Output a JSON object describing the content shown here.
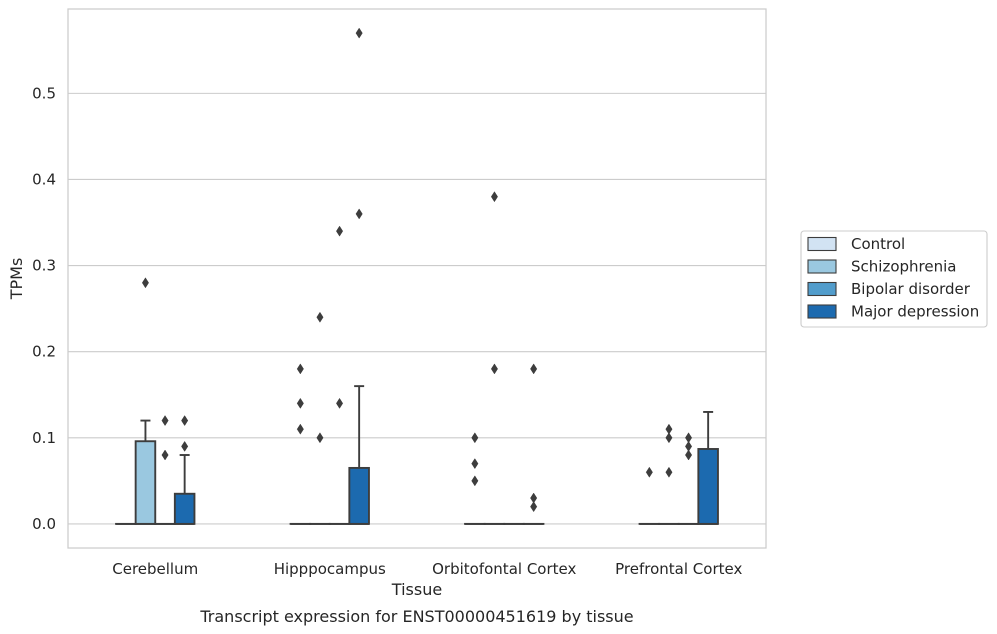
{
  "chart_data": {
    "type": "boxplot",
    "caption": "Transcript expression for ENST00000451619 by tissue",
    "xlabel": "Tissue",
    "ylabel": "TPMs",
    "ylim": [
      -0.028,
      0.598
    ],
    "yticks": [
      0.0,
      0.1,
      0.2,
      0.3,
      0.4,
      0.5
    ],
    "ytick_labels": [
      "0.0",
      "0.1",
      "0.2",
      "0.3",
      "0.4",
      "0.5"
    ],
    "grid": "horizontal",
    "legend_position": "right",
    "categories": [
      "Cerebellum",
      "Hipppocampus",
      "Orbitofontal Cortex",
      "Prefrontal Cortex"
    ],
    "series": [
      {
        "name": "Control",
        "color": "#d2e3f3",
        "boxes": [
          {
            "q1": 0,
            "median": 0,
            "q3": 0,
            "whisker_low": 0,
            "whisker_high": 0,
            "outliers": []
          },
          {
            "q1": 0,
            "median": 0,
            "q3": 0,
            "whisker_low": 0,
            "whisker_high": 0,
            "outliers": [
              0.11,
              0.14,
              0.18
            ]
          },
          {
            "q1": 0,
            "median": 0,
            "q3": 0,
            "whisker_low": 0,
            "whisker_high": 0,
            "outliers": [
              0.05,
              0.07,
              0.1
            ]
          },
          {
            "q1": 0,
            "median": 0,
            "q3": 0,
            "whisker_low": 0,
            "whisker_high": 0,
            "outliers": [
              0.06
            ]
          }
        ]
      },
      {
        "name": "Schizophrenia",
        "color": "#9ac8e0",
        "boxes": [
          {
            "q1": 0,
            "median": 0,
            "q3": 0.096,
            "whisker_low": 0,
            "whisker_high": 0.12,
            "outliers": [
              0.28
            ]
          },
          {
            "q1": 0,
            "median": 0,
            "q3": 0,
            "whisker_low": 0,
            "whisker_high": 0,
            "outliers": [
              0.1,
              0.24
            ]
          },
          {
            "q1": 0,
            "median": 0,
            "q3": 0,
            "whisker_low": 0,
            "whisker_high": 0,
            "outliers": [
              0.18,
              0.38
            ]
          },
          {
            "q1": 0,
            "median": 0,
            "q3": 0,
            "whisker_low": 0,
            "whisker_high": 0,
            "outliers": [
              0.06,
              0.1,
              0.11
            ]
          }
        ]
      },
      {
        "name": "Bipolar disorder",
        "color": "#529dcc",
        "boxes": [
          {
            "q1": 0,
            "median": 0,
            "q3": 0,
            "whisker_low": 0,
            "whisker_high": 0,
            "outliers": [
              0.08,
              0.12
            ]
          },
          {
            "q1": 0,
            "median": 0,
            "q3": 0,
            "whisker_low": 0,
            "whisker_high": 0,
            "outliers": [
              0.14,
              0.34
            ]
          },
          {
            "q1": 0,
            "median": 0,
            "q3": 0,
            "whisker_low": 0,
            "whisker_high": 0,
            "outliers": []
          },
          {
            "q1": 0,
            "median": 0,
            "q3": 0,
            "whisker_low": 0,
            "whisker_high": 0,
            "outliers": [
              0.08,
              0.09,
              0.1
            ]
          }
        ]
      },
      {
        "name": "Major depression",
        "color": "#1c6aaf",
        "boxes": [
          {
            "q1": 0,
            "median": 0,
            "q3": 0.035,
            "whisker_low": 0,
            "whisker_high": 0.08,
            "outliers": [
              0.09,
              0.12
            ]
          },
          {
            "q1": 0,
            "median": 0,
            "q3": 0.065,
            "whisker_low": 0,
            "whisker_high": 0.16,
            "outliers": [
              0.36,
              0.57
            ]
          },
          {
            "q1": 0,
            "median": 0,
            "q3": 0,
            "whisker_low": 0,
            "whisker_high": 0,
            "outliers": [
              0.02,
              0.03,
              0.18
            ]
          },
          {
            "q1": 0,
            "median": 0,
            "q3": 0.087,
            "whisker_low": 0,
            "whisker_high": 0.13,
            "outliers": []
          }
        ]
      }
    ]
  }
}
